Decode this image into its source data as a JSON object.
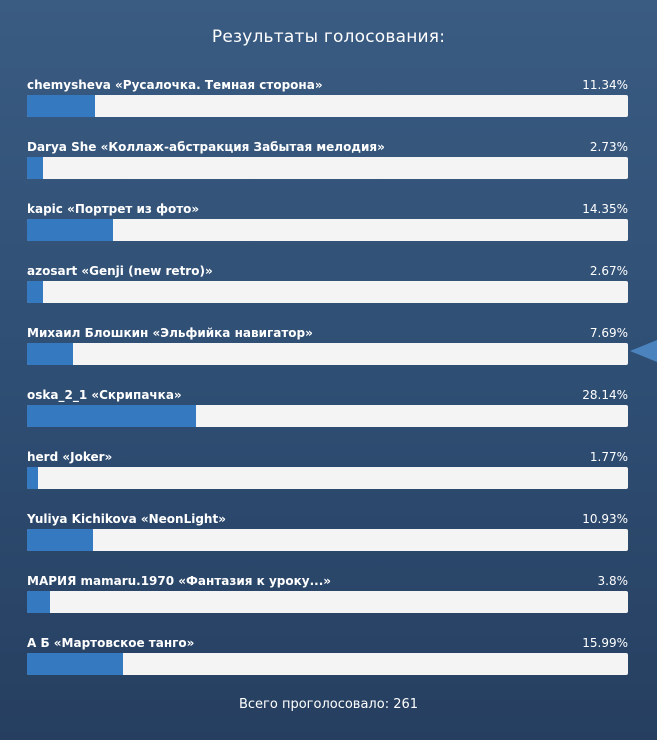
{
  "poll": {
    "title": "Результаты голосования:",
    "items": [
      {
        "label": "chemysheva «Русалочка. Темная сторона»",
        "percent_text": "11.34%",
        "percent": 11.34
      },
      {
        "label": "Darya She «Коллаж-абстракция Забытая мелодия»",
        "percent_text": "2.73%",
        "percent": 2.73
      },
      {
        "label": "kapic «Портрет из фото»",
        "percent_text": "14.35%",
        "percent": 14.35
      },
      {
        "label": "azosart «Genji (new retro)»",
        "percent_text": "2.67%",
        "percent": 2.67
      },
      {
        "label": "Михаил Блошкин «Эльфийка навигатор»",
        "percent_text": "7.69%",
        "percent": 7.69
      },
      {
        "label": "oska_2_1 «Скрипачка»",
        "percent_text": "28.14%",
        "percent": 28.14
      },
      {
        "label": "herd «Joker»",
        "percent_text": "1.77%",
        "percent": 1.77
      },
      {
        "label": "Yuliya Kichikova «NeonLight»",
        "percent_text": "10.93%",
        "percent": 10.93
      },
      {
        "label": "МАРИЯ mamaru.1970 «Фантазия к уроку...»",
        "percent_text": "3.8%",
        "percent": 3.8
      },
      {
        "label": "А Б «Мартовское танго»",
        "percent_text": "15.99%",
        "percent": 15.99
      }
    ],
    "total_text": "Всего проголосовало: 261"
  },
  "colors": {
    "background": "#2e4d72",
    "bar_fill": "#3579c0",
    "bar_track": "#f4f4f4",
    "arrow": "#4a83bd"
  },
  "icons": {
    "side_arrow": "left-triangle-icon"
  }
}
